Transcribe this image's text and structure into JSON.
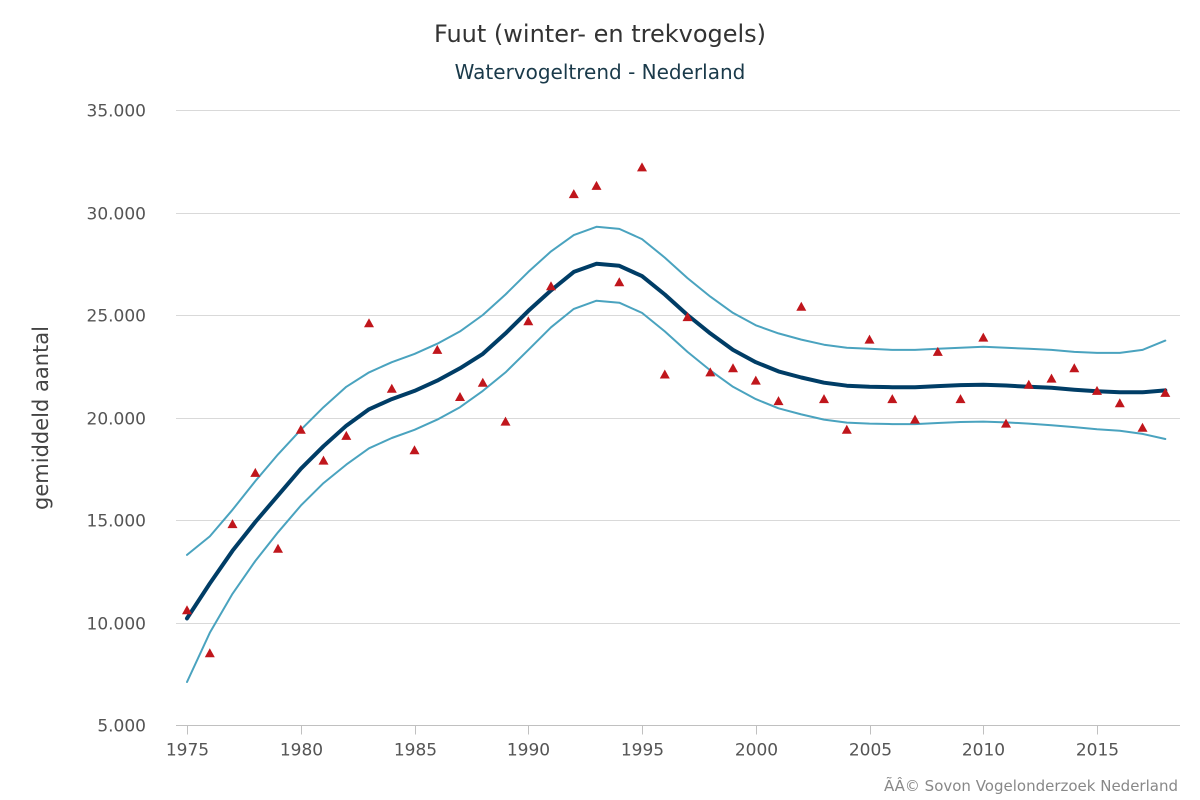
{
  "chart_data": {
    "type": "line",
    "title": "Fuut (winter- en trekvogels)",
    "subtitle": "Watervogeltrend - Nederland",
    "ylabel": "gemiddeld aantal",
    "xlabel": "",
    "xlim": [
      1975,
      2018
    ],
    "ylim": [
      5000,
      35000
    ],
    "x_ticks": [
      1975,
      1980,
      1985,
      1990,
      1995,
      2000,
      2005,
      2010,
      2015
    ],
    "x_tick_labels": [
      "1975",
      "1980",
      "1985",
      "1990",
      "1995",
      "2000",
      "2005",
      "2010",
      "2015"
    ],
    "y_ticks": [
      5000,
      10000,
      15000,
      20000,
      25000,
      30000,
      35000
    ],
    "y_tick_labels": [
      "5.000",
      "10.000",
      "15.000",
      "20.000",
      "25.000",
      "30.000",
      "35.000"
    ],
    "grid": "horizontal",
    "legend": "none",
    "credits": "ÃÂ© Sovon Vogelonderzoek Nederland",
    "colors": {
      "trend": "#003d66",
      "bounds": "#4aa3bf",
      "points": "#c0161c"
    },
    "x": [
      1975,
      1976,
      1977,
      1978,
      1979,
      1980,
      1981,
      1982,
      1983,
      1984,
      1985,
      1986,
      1987,
      1988,
      1989,
      1990,
      1991,
      1992,
      1993,
      1994,
      1995,
      1996,
      1997,
      1998,
      1999,
      2000,
      2001,
      2002,
      2003,
      2004,
      2005,
      2006,
      2007,
      2008,
      2009,
      2010,
      2011,
      2012,
      2013,
      2014,
      2015,
      2016,
      2017,
      2018
    ],
    "series": [
      {
        "role": "upper",
        "style": "line",
        "values": [
          13300,
          14200,
          15500,
          16900,
          18200,
          19400,
          20500,
          21500,
          22200,
          22700,
          23100,
          23600,
          24200,
          25000,
          26000,
          27100,
          28100,
          28900,
          29300,
          29200,
          28700,
          27800,
          26800,
          25900,
          25100,
          24500,
          24100,
          23800,
          23550,
          23400,
          23350,
          23300,
          23300,
          23350,
          23400,
          23450,
          23400,
          23350,
          23300,
          23200,
          23150,
          23150,
          23300,
          23750
        ]
      },
      {
        "role": "trend",
        "style": "line",
        "values": [
          10200,
          11900,
          13500,
          14900,
          16200,
          17500,
          18600,
          19600,
          20400,
          20900,
          21300,
          21800,
          22400,
          23100,
          24100,
          25200,
          26200,
          27100,
          27500,
          27400,
          26900,
          26000,
          25000,
          24100,
          23300,
          22700,
          22250,
          21950,
          21700,
          21550,
          21500,
          21480,
          21480,
          21530,
          21580,
          21600,
          21560,
          21500,
          21450,
          21350,
          21280,
          21230,
          21230,
          21320
        ]
      },
      {
        "role": "lower",
        "style": "line",
        "values": [
          7100,
          9500,
          11400,
          13000,
          14400,
          15700,
          16800,
          17700,
          18500,
          19000,
          19400,
          19900,
          20500,
          21300,
          22200,
          23300,
          24400,
          25300,
          25700,
          25600,
          25100,
          24200,
          23200,
          22300,
          21500,
          20900,
          20450,
          20150,
          19900,
          19750,
          19700,
          19680,
          19680,
          19730,
          19780,
          19800,
          19760,
          19700,
          19620,
          19530,
          19430,
          19350,
          19200,
          18950
        ]
      },
      {
        "role": "observed",
        "style": "markers",
        "marker": "triangle",
        "values": [
          10600,
          8500,
          14800,
          17300,
          13600,
          19400,
          17900,
          19100,
          24600,
          21400,
          18400,
          23300,
          21000,
          21700,
          19800,
          24700,
          26400,
          30900,
          31300,
          26600,
          32200,
          22100,
          24900,
          22200,
          22400,
          21800,
          20800,
          25400,
          20900,
          19400,
          23800,
          20900,
          19900,
          23200,
          20900,
          23900,
          19700,
          21600,
          21900,
          22400,
          21300,
          20700,
          19500,
          21200
        ]
      }
    ]
  }
}
